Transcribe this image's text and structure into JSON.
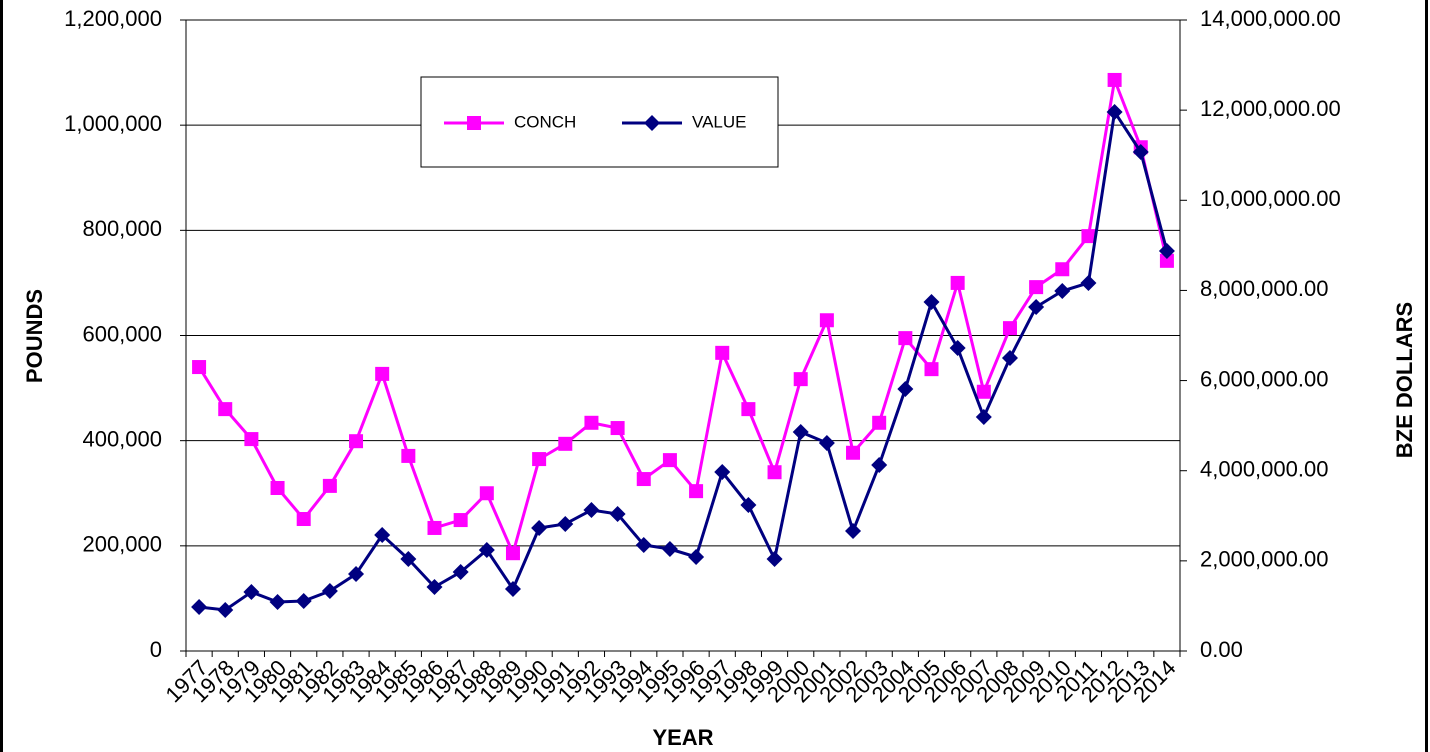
{
  "chart_data": {
    "type": "line",
    "x_label": "YEAR",
    "y_label": "POUNDS",
    "y2_label": "BZE DOLLARS",
    "categories": [
      "1977",
      "1978",
      "1979",
      "1980",
      "1981",
      "1982",
      "1983",
      "1984",
      "1985",
      "1986",
      "1987",
      "1988",
      "1989",
      "1990",
      "1991",
      "1992",
      "1993",
      "1994",
      "1995",
      "1996",
      "1997",
      "1998",
      "1999",
      "2000",
      "2001",
      "2002",
      "2003",
      "2004",
      "2005",
      "2006",
      "2007",
      "2008",
      "2009",
      "2010",
      "2011",
      "2012",
      "2013",
      "2014"
    ],
    "series": [
      {
        "name": "CONCH",
        "color": "#ff00ff",
        "marker": "square",
        "values": [
          540000,
          460000,
          403000,
          310000,
          251000,
          314000,
          399000,
          527000,
          371000,
          234000,
          249000,
          300000,
          186000,
          365000,
          394000,
          434000,
          424000,
          327000,
          363000,
          304000,
          567000,
          460000,
          340000,
          517000,
          629000,
          377000,
          434000,
          595000,
          536000,
          700000,
          493000,
          614000,
          692000,
          726000,
          789000,
          1086000,
          958000,
          742000
        ]
      },
      {
        "name": "VALUE",
        "color": "#000080",
        "marker": "diamond",
        "axis": "y2",
        "values": [
          976000,
          910000,
          1309000,
          1087000,
          1109000,
          1331000,
          1708000,
          2574000,
          2041000,
          1420000,
          1753000,
          2241000,
          1376000,
          2729000,
          2818000,
          3128000,
          3040000,
          2352000,
          2263000,
          2086000,
          3971000,
          3239000,
          2041000,
          4859000,
          4615000,
          2662000,
          4127000,
          5813000,
          7743000,
          6723000,
          5192000,
          6501000,
          7632000,
          7987000,
          8165000,
          11959000,
          11071000,
          8875000
        ]
      }
    ],
    "ylim": [
      0,
      1200000
    ],
    "yticks": [
      0,
      {
        "value": 200000,
        "label": "200,000"
      },
      {
        "value": 400000,
        "label": "400,000"
      },
      {
        "value": 600000,
        "label": "600,000"
      },
      {
        "value": 800000,
        "label": "800,000"
      },
      {
        "value": 1000000,
        "label": "1,000,000"
      },
      {
        "value": 1200000,
        "label": "1,200,000"
      }
    ],
    "y2lim": [
      0,
      14000000
    ],
    "y2ticks": [
      {
        "value": 0,
        "label": "0.00"
      },
      {
        "value": 2000000,
        "label": "2,000,000.00"
      },
      {
        "value": 4000000,
        "label": "4,000,000.00"
      },
      {
        "value": 6000000,
        "label": "6,000,000.00"
      },
      {
        "value": 8000000,
        "label": "8,000,000.00"
      },
      {
        "value": 10000000,
        "label": "10,000,000.00"
      },
      {
        "value": 12000000,
        "label": "12,000,000.00"
      },
      {
        "value": 14000000,
        "label": "14,000,000.00"
      }
    ],
    "grid": true
  }
}
